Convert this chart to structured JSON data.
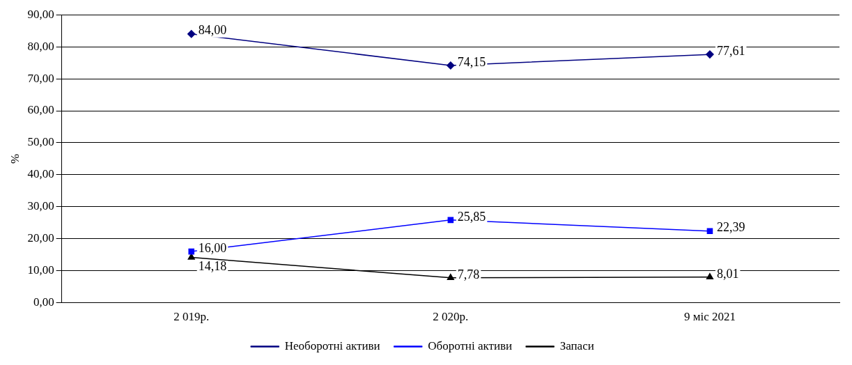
{
  "chart_data": {
    "type": "line",
    "ylabel": "%",
    "categories": [
      "2 019р.",
      "2 020р.",
      "9 міс 2021"
    ],
    "series": [
      {
        "name": "Необоротні активи",
        "color": "#000080",
        "marker": "diamond",
        "values": [
          84.0,
          74.15,
          77.61
        ],
        "value_labels": [
          "84,00",
          "74,15",
          "77,61"
        ]
      },
      {
        "name": "Оборотні активи",
        "color": "#0000ff",
        "marker": "square",
        "values": [
          16.0,
          25.85,
          22.39
        ],
        "value_labels": [
          "16,00",
          "25,85",
          "22,39"
        ]
      },
      {
        "name": "Запаси",
        "color": "#000000",
        "marker": "triangle",
        "values": [
          14.18,
          7.78,
          8.01
        ],
        "value_labels": [
          "14,18",
          "7,78",
          "8,01"
        ]
      }
    ],
    "ylim": [
      0,
      90
    ],
    "yticks": [
      {
        "value": 0,
        "label": "0,00"
      },
      {
        "value": 10,
        "label": "10,00"
      },
      {
        "value": 20,
        "label": "20,00"
      },
      {
        "value": 30,
        "label": "30,00"
      },
      {
        "value": 40,
        "label": "40,00"
      },
      {
        "value": 50,
        "label": "50,00"
      },
      {
        "value": 60,
        "label": "60,00"
      },
      {
        "value": 70,
        "label": "70,00"
      },
      {
        "value": 80,
        "label": "80,00"
      },
      {
        "value": 90,
        "label": "90,00"
      }
    ],
    "grid": "y",
    "legend": "bottom"
  }
}
